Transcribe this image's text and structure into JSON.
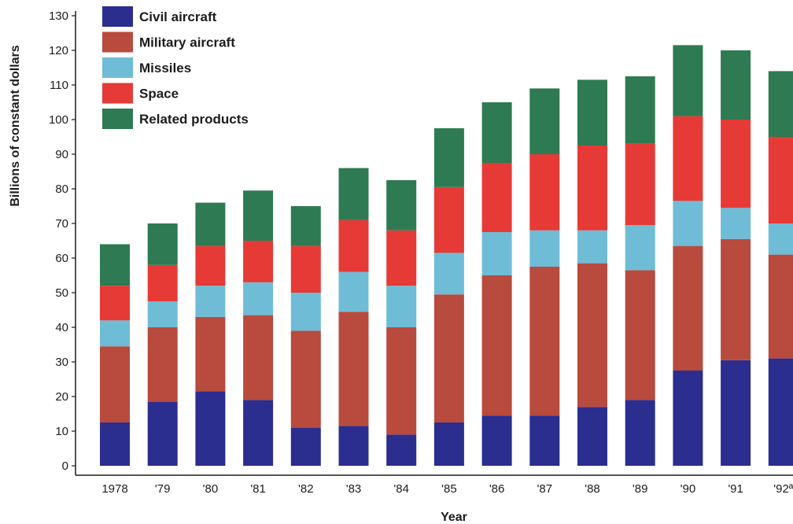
{
  "chart_data": {
    "type": "bar",
    "stacked": true,
    "xlabel": "Year",
    "ylabel": "Billions of constant dollars",
    "ylim": [
      0,
      130
    ],
    "yticks": [
      0,
      10,
      20,
      30,
      40,
      50,
      60,
      70,
      80,
      90,
      100,
      110,
      120,
      130
    ],
    "grid": false,
    "legend_position": "top-left",
    "categories": [
      "1978",
      "'79",
      "'80",
      "'81",
      "'82",
      "'83",
      "'84",
      "'85",
      "'86",
      "'87",
      "'88",
      "'89",
      "'90",
      "'91",
      "'92ª"
    ],
    "series": [
      {
        "name": "Civil aircraft",
        "color": "#2b2d8f",
        "values": [
          12.5,
          18.5,
          21.5,
          19,
          11,
          11.5,
          9,
          12.5,
          14.5,
          14.5,
          17,
          19,
          27.5,
          30.5,
          31
        ]
      },
      {
        "name": "Military aircraft",
        "color": "#b84a3e",
        "values": [
          22,
          21.5,
          21.5,
          24.5,
          28,
          33,
          31,
          37,
          40.5,
          43,
          41.5,
          37.5,
          36,
          35,
          30
        ]
      },
      {
        "name": "Missiles",
        "color": "#6fbcd6",
        "values": [
          7.5,
          7.5,
          9,
          9.5,
          11,
          11.5,
          12,
          12,
          12.5,
          10.5,
          9.5,
          13,
          13,
          9,
          9
        ]
      },
      {
        "name": "Space",
        "color": "#e63a36",
        "values": [
          10,
          10.5,
          11.5,
          12,
          13.5,
          15,
          16,
          19,
          20,
          22,
          24.5,
          23.5,
          24.5,
          25.5,
          25
        ]
      },
      {
        "name": "Related products",
        "color": "#2e7a52",
        "values": [
          12,
          12,
          12.5,
          14.5,
          11.5,
          15,
          14.5,
          17,
          17.5,
          19,
          19,
          19.5,
          20.5,
          20,
          19
        ]
      }
    ]
  }
}
